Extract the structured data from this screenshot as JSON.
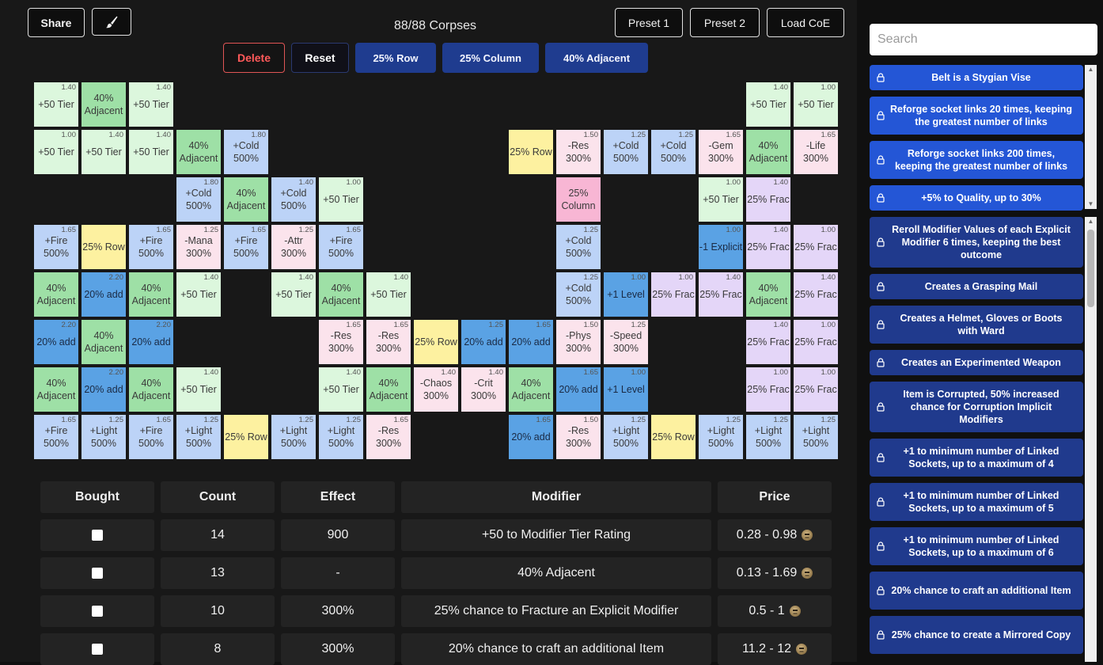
{
  "toolbar": {
    "share_label": "Share",
    "brush_icon": "brush-icon",
    "corpses": "88/88 Corpses",
    "preset1": "Preset 1",
    "preset2": "Preset 2",
    "load": "Load CoE",
    "delete": "Delete",
    "reset": "Reset",
    "row": "25% Row",
    "column": "25% Column",
    "adjacent": "40% Adjacent"
  },
  "grid": [
    {
      "c": 0,
      "r": 0,
      "t": "tier",
      "label": "+50 Tier",
      "cost": "1.40"
    },
    {
      "c": 1,
      "r": 0,
      "t": "adj",
      "label": "40%\nAdjacent",
      "cost": ""
    },
    {
      "c": 2,
      "r": 0,
      "t": "tier",
      "label": "+50 Tier",
      "cost": "1.40"
    },
    {
      "c": 15,
      "r": 0,
      "t": "tier",
      "label": "+50 Tier",
      "cost": "1.40"
    },
    {
      "c": 16,
      "r": 0,
      "t": "tier",
      "label": "+50 Tier",
      "cost": "1.00"
    },
    {
      "c": 0,
      "r": 1,
      "t": "tier",
      "label": "+50 Tier",
      "cost": "1.00"
    },
    {
      "c": 1,
      "r": 1,
      "t": "tier",
      "label": "+50 Tier",
      "cost": "1.40"
    },
    {
      "c": 2,
      "r": 1,
      "t": "tier",
      "label": "+50 Tier",
      "cost": "1.40"
    },
    {
      "c": 3,
      "r": 1,
      "t": "adj",
      "label": "40%\nAdjacent",
      "cost": ""
    },
    {
      "c": 4,
      "r": 1,
      "t": "blue",
      "label": "+Cold\n500%",
      "cost": "1.80"
    },
    {
      "c": 10,
      "r": 1,
      "t": "yel",
      "label": "25% Row",
      "cost": ""
    },
    {
      "c": 11,
      "r": 1,
      "t": "res",
      "label": "-Res\n300%",
      "cost": "1.50"
    },
    {
      "c": 12,
      "r": 1,
      "t": "blue",
      "label": "+Cold\n500%",
      "cost": "1.25"
    },
    {
      "c": 13,
      "r": 1,
      "t": "blue",
      "label": "+Cold\n500%",
      "cost": "1.25"
    },
    {
      "c": 14,
      "r": 1,
      "t": "res",
      "label": "-Gem\n300%",
      "cost": "1.65"
    },
    {
      "c": 15,
      "r": 1,
      "t": "adj",
      "label": "40%\nAdjacent",
      "cost": ""
    },
    {
      "c": 16,
      "r": 1,
      "t": "res",
      "label": "-Life\n300%",
      "cost": "1.65"
    },
    {
      "c": 3,
      "r": 2,
      "t": "blue",
      "label": "+Cold\n500%",
      "cost": "1.80"
    },
    {
      "c": 4,
      "r": 2,
      "t": "adj",
      "label": "40%\nAdjacent",
      "cost": ""
    },
    {
      "c": 5,
      "r": 2,
      "t": "blue",
      "label": "+Cold\n500%",
      "cost": "1.40"
    },
    {
      "c": 6,
      "r": 2,
      "t": "tier",
      "label": "+50 Tier",
      "cost": "1.00"
    },
    {
      "c": 11,
      "r": 2,
      "t": "pink",
      "label": "25%\nColumn",
      "cost": ""
    },
    {
      "c": 14,
      "r": 2,
      "t": "tier",
      "label": "+50 Tier",
      "cost": "1.00"
    },
    {
      "c": 15,
      "r": 2,
      "t": "frac",
      "label": "25% Frac",
      "cost": "1.40"
    },
    {
      "c": 0,
      "r": 3,
      "t": "blue",
      "label": "+Fire\n500%",
      "cost": "1.65"
    },
    {
      "c": 1,
      "r": 3,
      "t": "yel",
      "label": "25% Row",
      "cost": ""
    },
    {
      "c": 2,
      "r": 3,
      "t": "blue",
      "label": "+Fire\n500%",
      "cost": "1.65"
    },
    {
      "c": 3,
      "r": 3,
      "t": "res",
      "label": "-Mana\n300%",
      "cost": "1.25"
    },
    {
      "c": 4,
      "r": 3,
      "t": "blue",
      "label": "+Fire\n500%",
      "cost": "1.65"
    },
    {
      "c": 5,
      "r": 3,
      "t": "res",
      "label": "-Attr\n300%",
      "cost": "1.25"
    },
    {
      "c": 6,
      "r": 3,
      "t": "blue",
      "label": "+Fire\n500%",
      "cost": "1.65"
    },
    {
      "c": 11,
      "r": 3,
      "t": "blue",
      "label": "+Cold\n500%",
      "cost": "1.25"
    },
    {
      "c": 14,
      "r": 3,
      "t": "dark",
      "label": "-1 Explicit",
      "cost": "1.00"
    },
    {
      "c": 15,
      "r": 3,
      "t": "frac",
      "label": "25% Frac",
      "cost": "1.40"
    },
    {
      "c": 16,
      "r": 3,
      "t": "frac",
      "label": "25% Frac",
      "cost": "1.00"
    },
    {
      "c": 0,
      "r": 4,
      "t": "adj",
      "label": "40%\nAdjacent",
      "cost": ""
    },
    {
      "c": 1,
      "r": 4,
      "t": "dark",
      "label": "20% add",
      "cost": "2.20"
    },
    {
      "c": 2,
      "r": 4,
      "t": "adj",
      "label": "40%\nAdjacent",
      "cost": ""
    },
    {
      "c": 3,
      "r": 4,
      "t": "tier",
      "label": "+50 Tier",
      "cost": "1.40"
    },
    {
      "c": 5,
      "r": 4,
      "t": "tier",
      "label": "+50 Tier",
      "cost": "1.40"
    },
    {
      "c": 6,
      "r": 4,
      "t": "adj",
      "label": "40%\nAdjacent",
      "cost": ""
    },
    {
      "c": 7,
      "r": 4,
      "t": "tier",
      "label": "+50 Tier",
      "cost": "1.40"
    },
    {
      "c": 11,
      "r": 4,
      "t": "blue",
      "label": "+Cold\n500%",
      "cost": "1.25"
    },
    {
      "c": 12,
      "r": 4,
      "t": "dark",
      "label": "+1 Level",
      "cost": "1.00"
    },
    {
      "c": 13,
      "r": 4,
      "t": "frac",
      "label": "25% Frac",
      "cost": "1.00"
    },
    {
      "c": 14,
      "r": 4,
      "t": "frac",
      "label": "25% Frac",
      "cost": "1.40"
    },
    {
      "c": 15,
      "r": 4,
      "t": "adj",
      "label": "40%\nAdjacent",
      "cost": ""
    },
    {
      "c": 16,
      "r": 4,
      "t": "frac",
      "label": "25% Frac",
      "cost": "1.40"
    },
    {
      "c": 0,
      "r": 5,
      "t": "dark",
      "label": "20% add",
      "cost": "2.20"
    },
    {
      "c": 1,
      "r": 5,
      "t": "adj",
      "label": "40%\nAdjacent",
      "cost": ""
    },
    {
      "c": 2,
      "r": 5,
      "t": "dark",
      "label": "20% add",
      "cost": "2.20"
    },
    {
      "c": 6,
      "r": 5,
      "t": "res",
      "label": "-Res\n300%",
      "cost": "1.65"
    },
    {
      "c": 7,
      "r": 5,
      "t": "res",
      "label": "-Res\n300%",
      "cost": "1.65"
    },
    {
      "c": 8,
      "r": 5,
      "t": "yel",
      "label": "25% Row",
      "cost": ""
    },
    {
      "c": 9,
      "r": 5,
      "t": "dark",
      "label": "20% add",
      "cost": "1.25"
    },
    {
      "c": 10,
      "r": 5,
      "t": "dark",
      "label": "20% add",
      "cost": "1.65"
    },
    {
      "c": 11,
      "r": 5,
      "t": "res",
      "label": "-Phys\n300%",
      "cost": "1.50"
    },
    {
      "c": 12,
      "r": 5,
      "t": "res",
      "label": "-Speed\n300%",
      "cost": "1.25"
    },
    {
      "c": 15,
      "r": 5,
      "t": "frac",
      "label": "25% Frac",
      "cost": "1.40"
    },
    {
      "c": 16,
      "r": 5,
      "t": "frac",
      "label": "25% Frac",
      "cost": "1.00"
    },
    {
      "c": 0,
      "r": 6,
      "t": "adj",
      "label": "40%\nAdjacent",
      "cost": ""
    },
    {
      "c": 1,
      "r": 6,
      "t": "dark",
      "label": "20% add",
      "cost": "2.20"
    },
    {
      "c": 2,
      "r": 6,
      "t": "adj",
      "label": "40%\nAdjacent",
      "cost": ""
    },
    {
      "c": 3,
      "r": 6,
      "t": "tier",
      "label": "+50 Tier",
      "cost": "1.40"
    },
    {
      "c": 6,
      "r": 6,
      "t": "tier",
      "label": "+50 Tier",
      "cost": "1.40"
    },
    {
      "c": 7,
      "r": 6,
      "t": "adj",
      "label": "40%\nAdjacent",
      "cost": ""
    },
    {
      "c": 8,
      "r": 6,
      "t": "res",
      "label": "-Chaos\n300%",
      "cost": "1.40"
    },
    {
      "c": 9,
      "r": 6,
      "t": "res",
      "label": "-Crit\n300%",
      "cost": "1.40"
    },
    {
      "c": 10,
      "r": 6,
      "t": "adj",
      "label": "40%\nAdjacent",
      "cost": ""
    },
    {
      "c": 11,
      "r": 6,
      "t": "dark",
      "label": "20% add",
      "cost": "1.65"
    },
    {
      "c": 12,
      "r": 6,
      "t": "dark",
      "label": "+1 Level",
      "cost": "1.00"
    },
    {
      "c": 15,
      "r": 6,
      "t": "frac",
      "label": "25% Frac",
      "cost": "1.00"
    },
    {
      "c": 16,
      "r": 6,
      "t": "frac",
      "label": "25% Frac",
      "cost": "1.00"
    },
    {
      "c": 0,
      "r": 7,
      "t": "blue",
      "label": "+Fire\n500%",
      "cost": "1.65"
    },
    {
      "c": 1,
      "r": 7,
      "t": "blue",
      "label": "+Light\n500%",
      "cost": "1.25"
    },
    {
      "c": 2,
      "r": 7,
      "t": "blue",
      "label": "+Fire\n500%",
      "cost": "1.65"
    },
    {
      "c": 3,
      "r": 7,
      "t": "blue",
      "label": "+Light\n500%",
      "cost": "1.25"
    },
    {
      "c": 4,
      "r": 7,
      "t": "yel",
      "label": "25% Row",
      "cost": ""
    },
    {
      "c": 5,
      "r": 7,
      "t": "blue",
      "label": "+Light\n500%",
      "cost": "1.25"
    },
    {
      "c": 6,
      "r": 7,
      "t": "blue",
      "label": "+Light\n500%",
      "cost": "1.25"
    },
    {
      "c": 7,
      "r": 7,
      "t": "res",
      "label": "-Res\n300%",
      "cost": "1.65"
    },
    {
      "c": 10,
      "r": 7,
      "t": "dark",
      "label": "20% add",
      "cost": "1.65"
    },
    {
      "c": 11,
      "r": 7,
      "t": "res",
      "label": "-Res\n300%",
      "cost": "1.50"
    },
    {
      "c": 12,
      "r": 7,
      "t": "blue",
      "label": "+Light\n500%",
      "cost": "1.25"
    },
    {
      "c": 13,
      "r": 7,
      "t": "yel",
      "label": "25% Row",
      "cost": ""
    },
    {
      "c": 14,
      "r": 7,
      "t": "blue",
      "label": "+Light\n500%",
      "cost": "1.25"
    },
    {
      "c": 15,
      "r": 7,
      "t": "blue",
      "label": "+Light\n500%",
      "cost": "1.25"
    },
    {
      "c": 16,
      "r": 7,
      "t": "blue",
      "label": "+Light\n500%",
      "cost": "1.25"
    }
  ],
  "table": {
    "headers": [
      "Bought",
      "Count",
      "Effect",
      "Modifier",
      "Price"
    ],
    "rows": [
      {
        "count": "14",
        "effect": "900",
        "modifier": "+50 to Modifier Tier Rating",
        "price": "0.28 - 0.98"
      },
      {
        "count": "13",
        "effect": "-",
        "modifier": "40% Adjacent",
        "price": "0.13 - 1.69"
      },
      {
        "count": "10",
        "effect": "300%",
        "modifier": "25% chance to Fracture an Explicit Modifier",
        "price": "0.5 - 1"
      },
      {
        "count": "8",
        "effect": "300%",
        "modifier": "20% chance to craft an additional Item",
        "price": "11.2 - 12"
      }
    ],
    "price_icon": "skull-currency-icon"
  },
  "sidebar": {
    "search_placeholder": "Search",
    "items": [
      {
        "label": "Belt is a Stygian Vise",
        "style": "bright"
      },
      {
        "label": "Reforge socket links 20 times, keeping the greatest number of links",
        "style": "bright"
      },
      {
        "label": "Reforge socket links 200 times, keeping the greatest number of links",
        "style": "bright"
      },
      {
        "label": "+5% to Quality, up to 30%",
        "style": "bright"
      },
      {
        "label": "Reroll Modifier Values of each Explicit Modifier 6 times, keeping the best outcome",
        "style": "dark"
      },
      {
        "label": "Creates a Grasping Mail",
        "style": "dark"
      },
      {
        "label": "Creates a Helmet, Gloves or Boots with Ward",
        "style": "dark"
      },
      {
        "label": "Creates an Experimented Weapon",
        "style": "dark"
      },
      {
        "label": "Item is Corrupted, 50% increased chance for Corruption Implicit Modifiers",
        "style": "dark"
      },
      {
        "label": "+1 to minimum number of Linked Sockets, up to a maximum of 4",
        "style": "dark"
      },
      {
        "label": "+1 to minimum number of Linked Sockets, up to a maximum of 5",
        "style": "dark"
      },
      {
        "label": "+1 to minimum number of Linked Sockets, up to a maximum of 6",
        "style": "dark"
      },
      {
        "label": "20% chance to craft an additional Item",
        "style": "dark"
      },
      {
        "label": "25% chance to create a Mirrored Copy",
        "style": "dark"
      }
    ],
    "lock_icon": "lock-icon"
  }
}
